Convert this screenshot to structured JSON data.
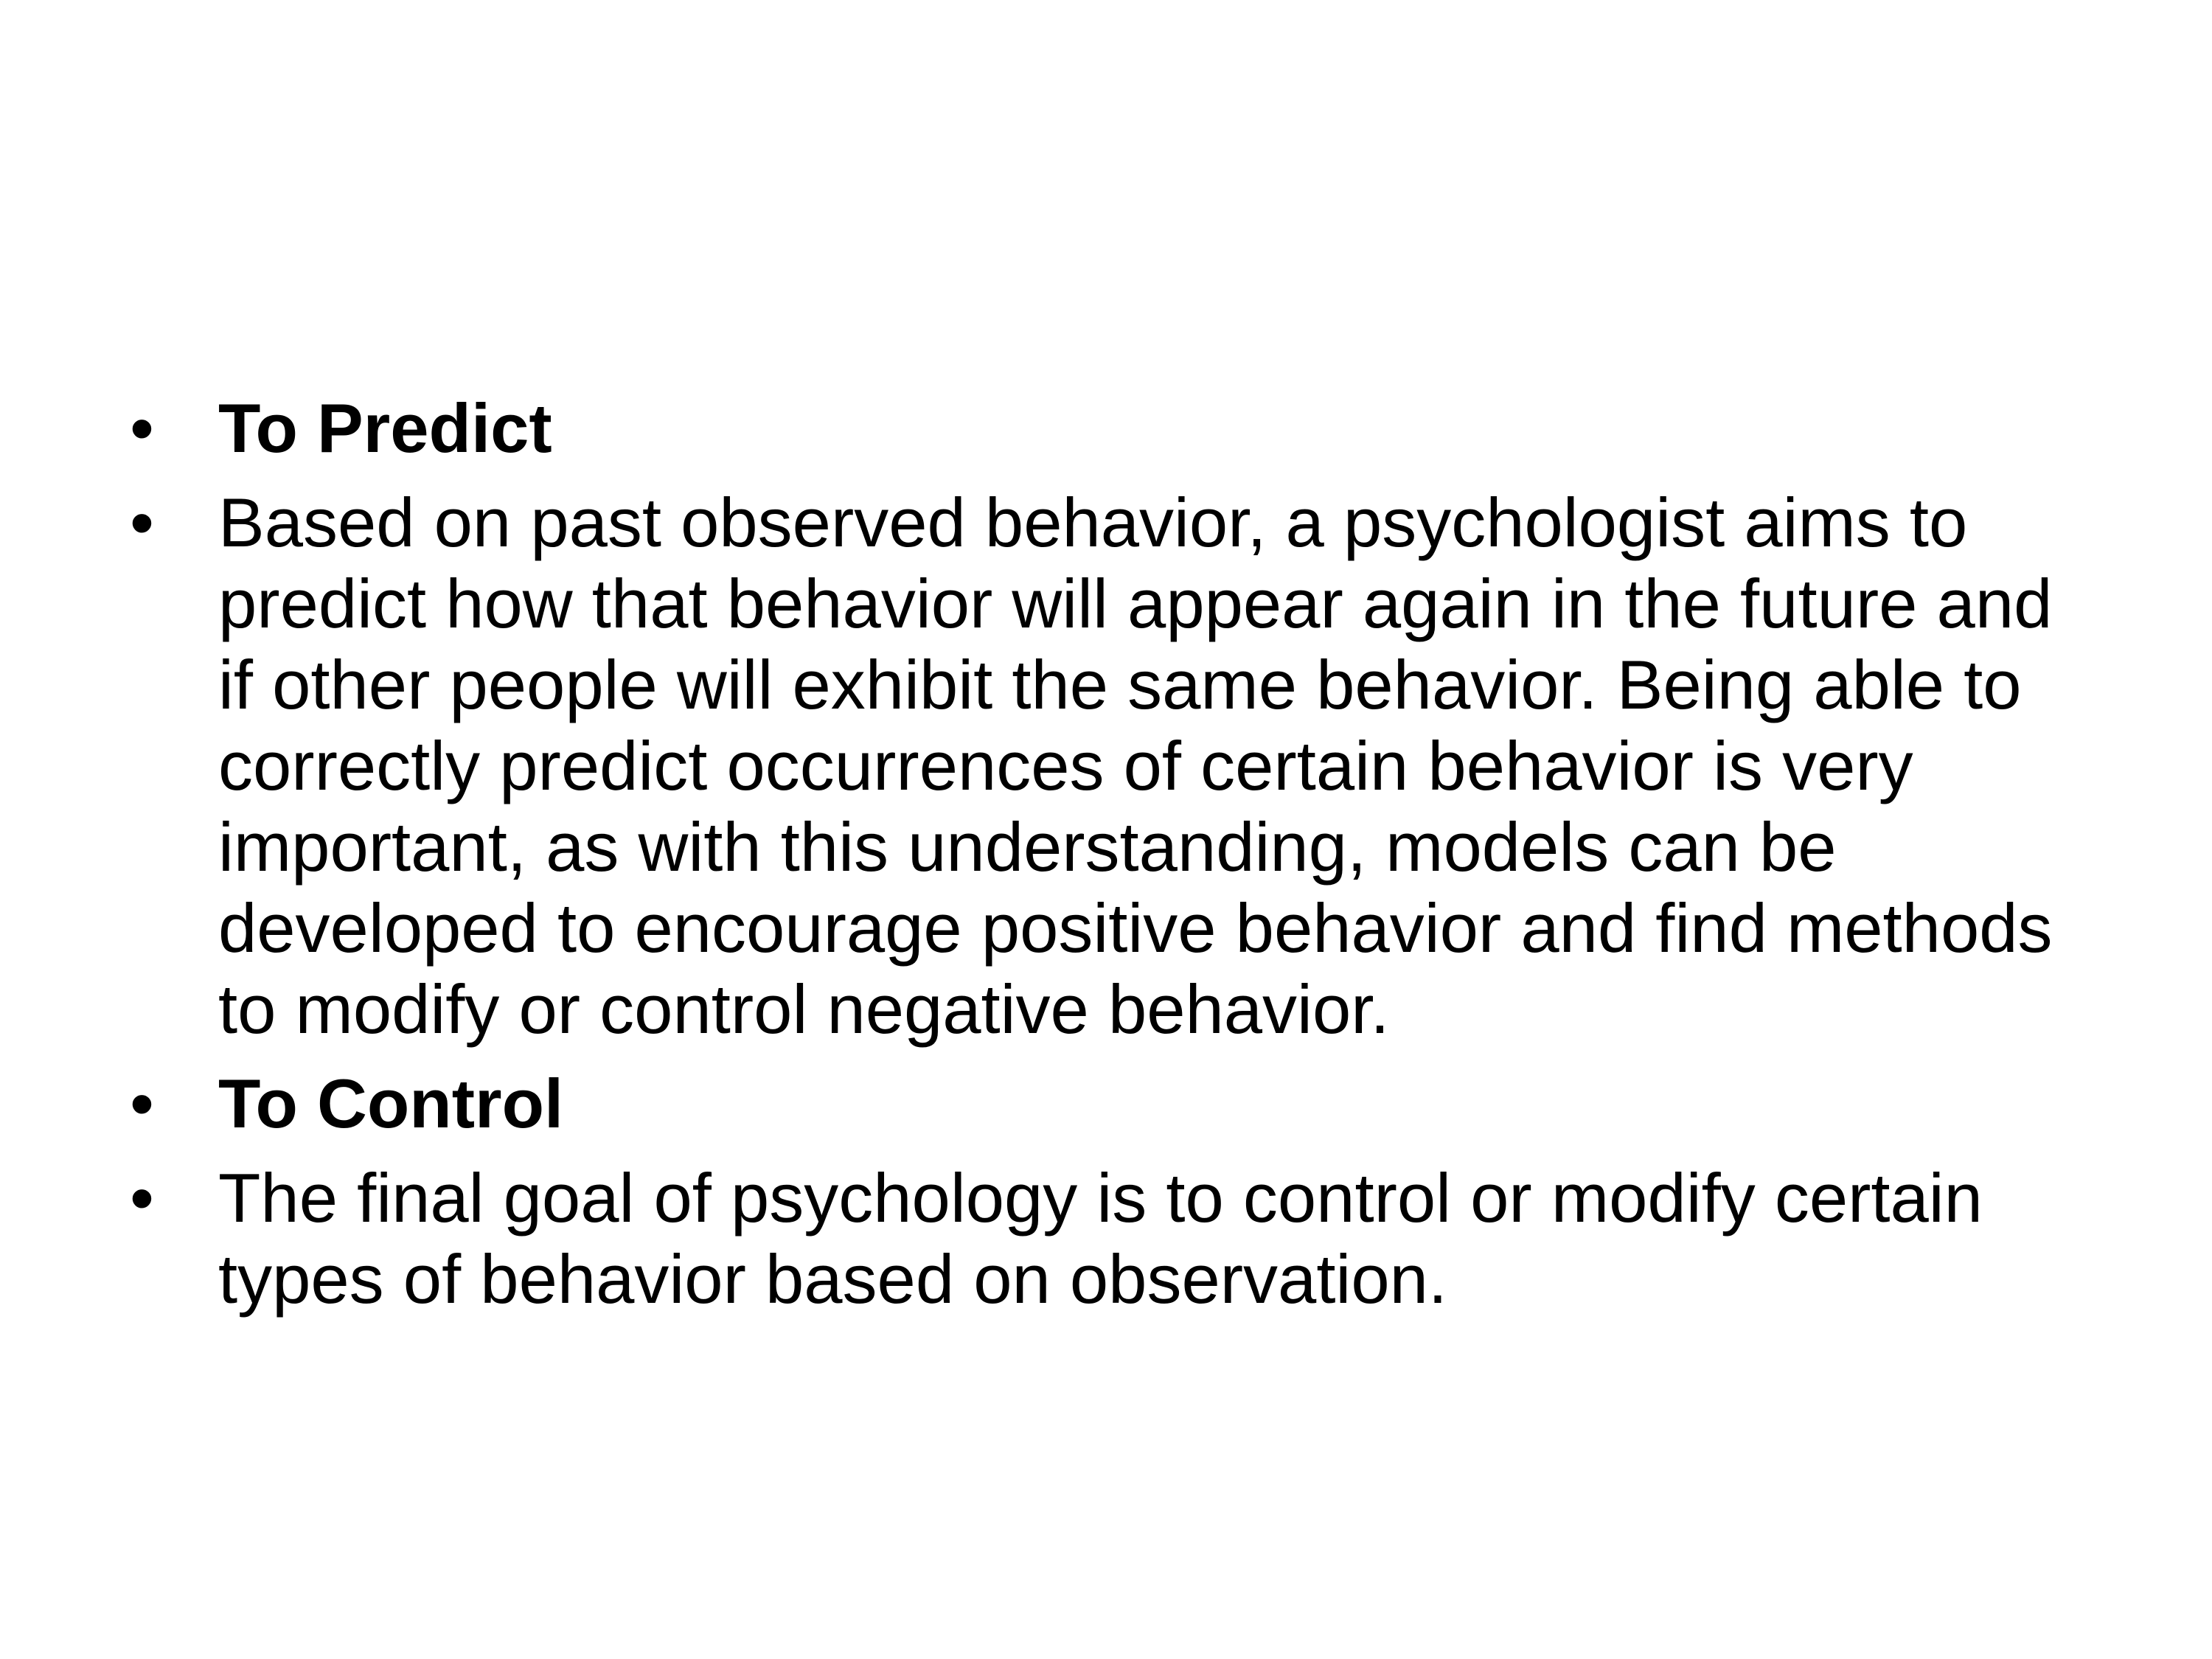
{
  "slide": {
    "bullets": [
      {
        "marker": "•",
        "text": "To Predict",
        "bold": true
      },
      {
        "marker": "•",
        "text": "Based on past observed behavior, a psychologist aims to predict how that behavior will appear again in the future and if other people will exhibit the same behavior. Being able to correctly predict occurrences of certain behavior is very important, as with this understanding, models can be developed to encourage positive behavior and find methods to modify or control negative behavior.",
        "bold": false
      },
      {
        "marker": "•",
        "text": "To Control",
        "bold": true
      },
      {
        "marker": "•",
        "text": "The final goal of psychology is to control or modify certain types of behavior based on observation.",
        "bold": false
      }
    ]
  }
}
